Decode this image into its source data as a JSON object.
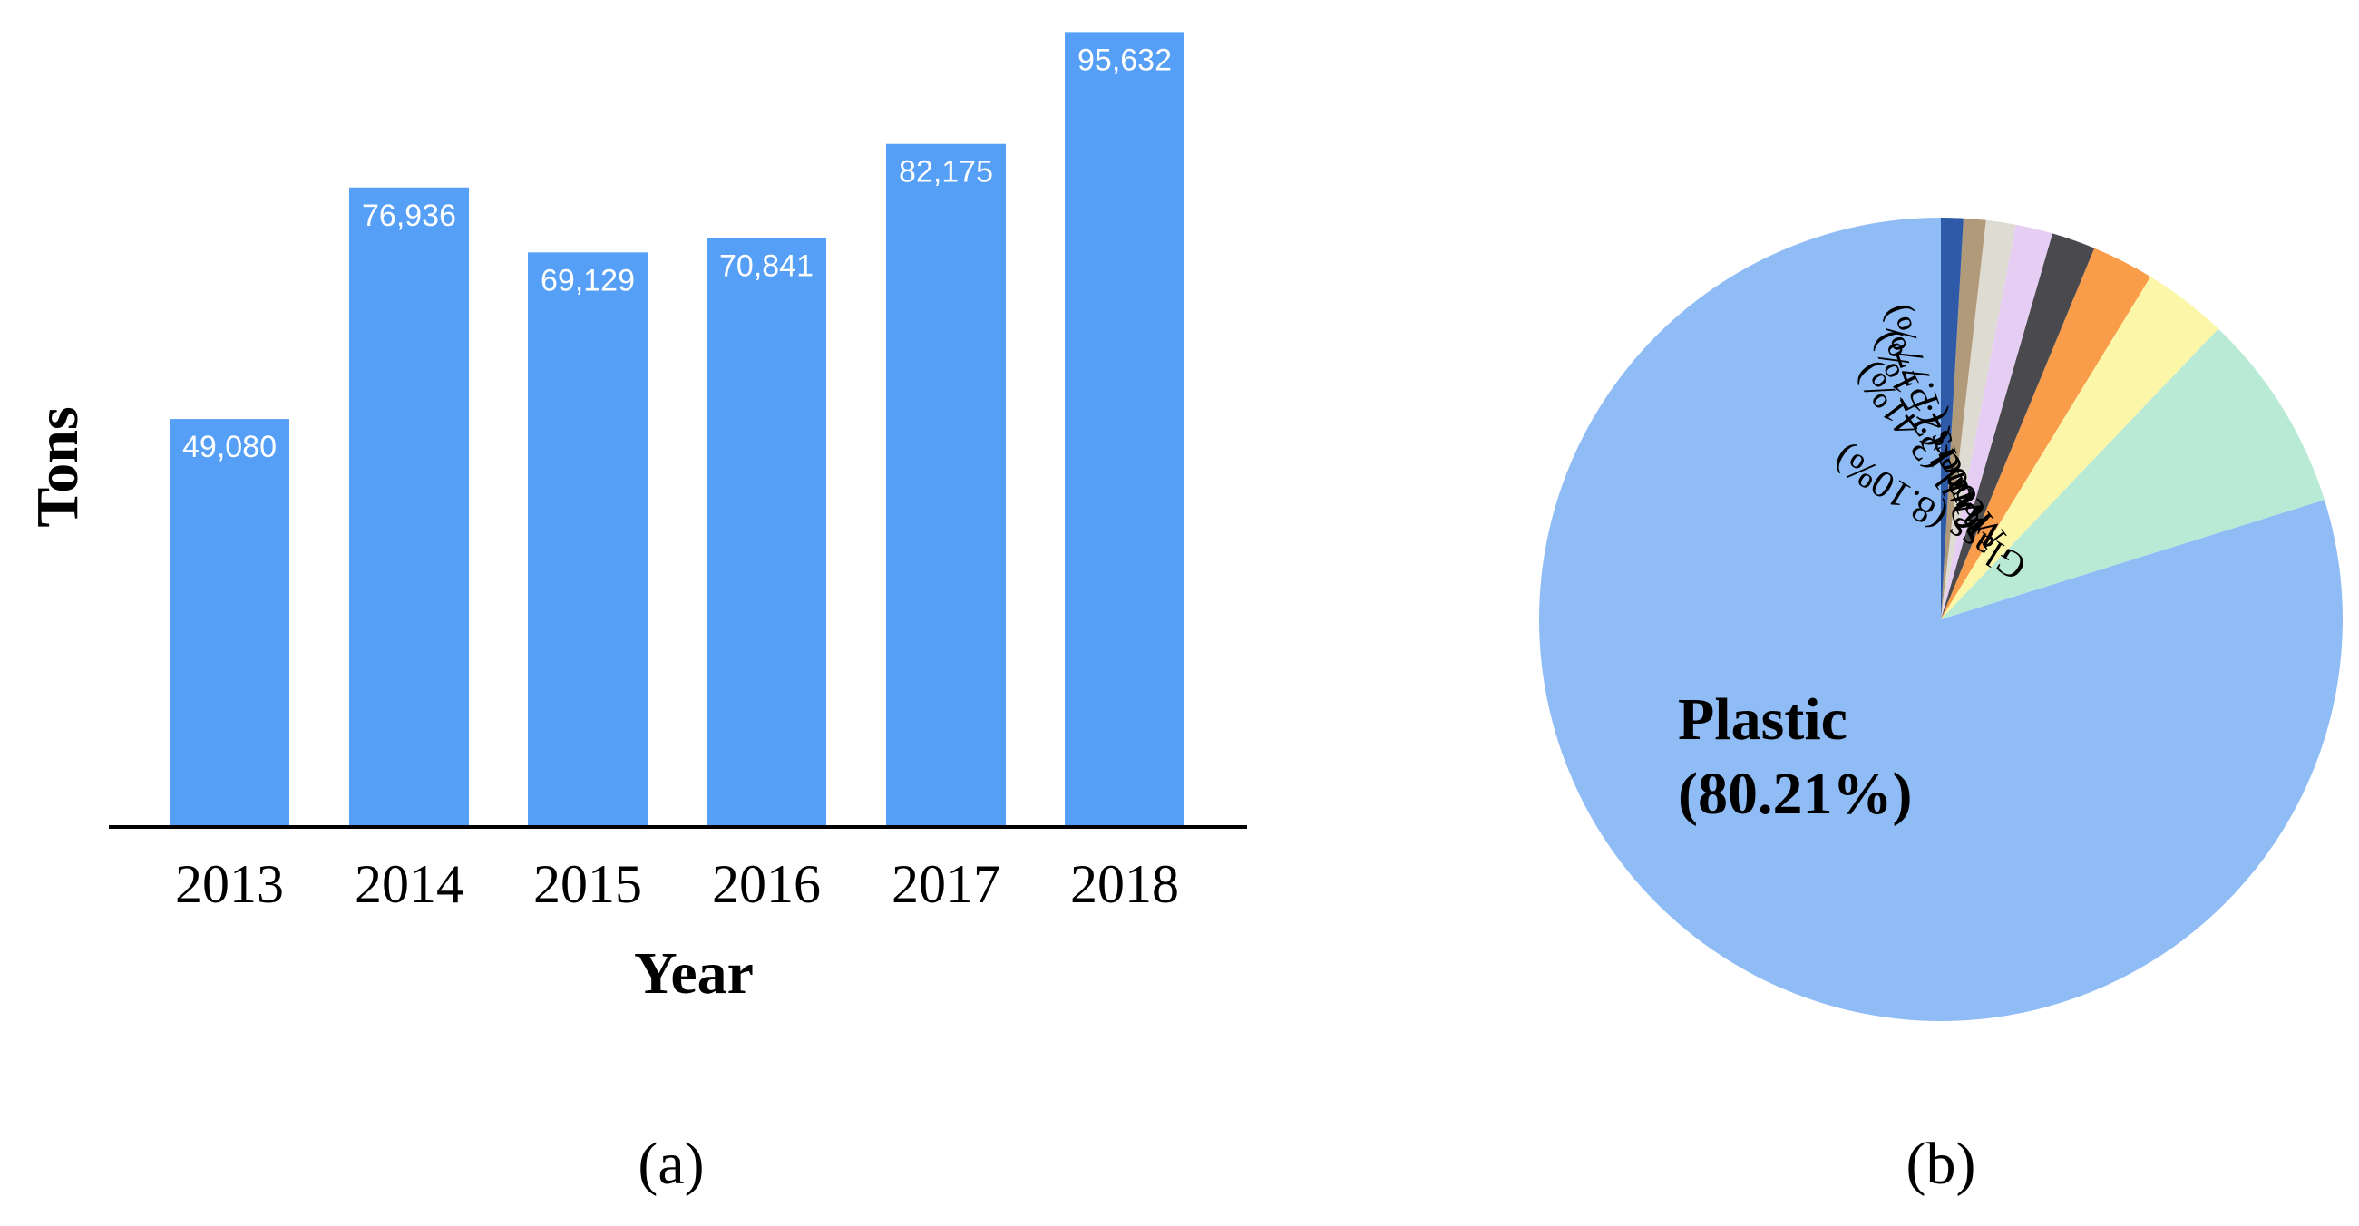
{
  "chart_data": [
    {
      "type": "bar",
      "panel_label": "(a)",
      "xlabel": "Year",
      "ylabel": "Tons",
      "categories": [
        "2013",
        "2014",
        "2015",
        "2016",
        "2017",
        "2018"
      ],
      "values": [
        49080,
        76936,
        69129,
        70841,
        82175,
        95632
      ],
      "data_labels": [
        "49,080",
        "76,936",
        "69,129",
        "70,841",
        "82,175",
        "95,632"
      ],
      "ylim": [
        0,
        96000
      ],
      "grid": false,
      "colors": {
        "bar": "#559ff7",
        "bar_label": "#ffffff"
      }
    },
    {
      "type": "pie",
      "panel_label": "(b)",
      "slices": [
        {
          "label": "Plastic (80.21%)",
          "label_lines": [
            "Plastic",
            "(80.21%)"
          ],
          "value": 80.21,
          "color": "#90bcf6"
        },
        {
          "label": "Glass (8.10%)",
          "value": 8.1,
          "color": "#b9ead6"
        },
        {
          "label": "Metal (3.41%)",
          "value": 3.41,
          "color": "#fcf6a8"
        },
        {
          "label": "Wood (2.51%)",
          "value": 2.51,
          "color": "#f99d4b"
        },
        {
          "label": "Others (1.77%)",
          "value": 1.77,
          "color": "#4a4a4e"
        },
        {
          "label": "",
          "value": 1.5,
          "color": "#e6cdf3"
        },
        {
          "label": "",
          "value": 1.2,
          "color": "#dedbd2"
        },
        {
          "label": "",
          "value": 0.9,
          "color": "#b19a7a"
        },
        {
          "label": "",
          "value": 0.9,
          "color": "#2f5aa7"
        }
      ]
    }
  ]
}
